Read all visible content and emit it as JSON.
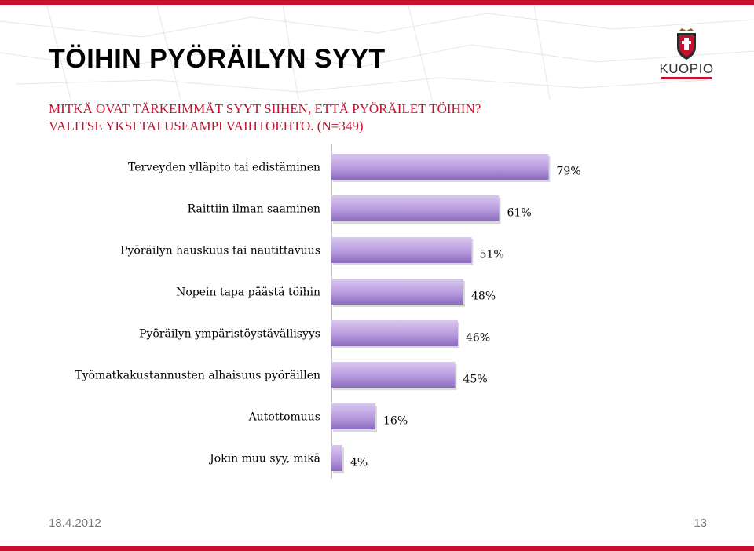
{
  "slide": {
    "title": "TÖIHIN PYÖRÄILYN SYYT",
    "subtitle_line1": "MITKÄ OVAT TÄRKEIMMÄT SYYT SIIHEN, ETTÄ PYÖRÄILET TÖIHIN?",
    "subtitle_line2": "VALITSE YKSI TAI USEAMPI VAIHTOEHTO. (N=349)",
    "date": "18.4.2012",
    "page_number": "13",
    "logo_text": "KUOPIO"
  },
  "colors": {
    "accent": "#c8102e",
    "bar_light": "#d6c4ee",
    "bar_dark": "#8a6bbf"
  },
  "chart_data": {
    "type": "bar",
    "orientation": "horizontal",
    "categories": [
      "Terveyden ylläpito tai edistäminen",
      "Raittiin ilman saaminen",
      "Pyöräilyn hauskuus tai nautittavuus",
      "Nopein tapa päästä töihin",
      "Pyöräilyn ympäristöystävällisyys",
      "Työmatkakustannusten alhaisuus pyöräillen",
      "Autottomuus",
      "Jokin muu syy, mikä"
    ],
    "values": [
      79,
      61,
      51,
      48,
      46,
      45,
      16,
      4
    ],
    "labels": [
      "79%",
      "61%",
      "51%",
      "48%",
      "46%",
      "45%",
      "16%",
      "4%"
    ],
    "unit": "%",
    "xlim": [
      0,
      100
    ],
    "grid": false,
    "legend": "none"
  }
}
